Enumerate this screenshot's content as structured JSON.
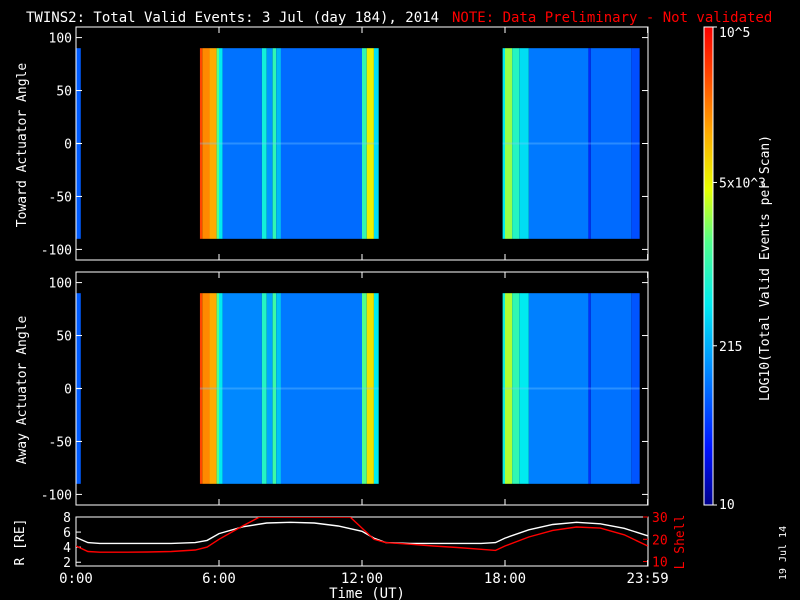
{
  "header": {
    "title": "TWINS2: Total Valid Events:  3 Jul (day 184), 2014",
    "note": "NOTE: Data Preliminary - Not validated"
  },
  "side_date": "19 Jul 14",
  "colors": {
    "note": "#ff0000",
    "lshell": "#ff0000",
    "r_line": "#ffffff",
    "bg": "#000000",
    "axes": "#ffffff"
  },
  "chart_data": [
    {
      "type": "heatmap",
      "panel": "toward",
      "ylabel": "Toward Actuator Angle",
      "ylim": [
        -110,
        110
      ],
      "yticks": [
        100,
        50,
        0,
        -50,
        -100
      ],
      "ytick_labels": [
        "100",
        "50",
        "0",
        "-50",
        "-100"
      ],
      "xlim_hours": [
        0,
        24
      ],
      "data_y_range": [
        -90,
        90
      ],
      "data_segments_hours": [
        [
          0,
          0.2
        ],
        [
          5.2,
          12.7
        ],
        [
          17.9,
          23.65
        ]
      ],
      "column_levels": [
        [
          0.0,
          0.2,
          0.22
        ],
        [
          5.2,
          5.3,
          0.9
        ],
        [
          5.3,
          5.6,
          0.82
        ],
        [
          5.6,
          5.9,
          0.78
        ],
        [
          5.9,
          6.0,
          0.55
        ],
        [
          6.0,
          6.15,
          0.42
        ],
        [
          6.15,
          7.8,
          0.25
        ],
        [
          7.8,
          8.0,
          0.45
        ],
        [
          8.0,
          8.25,
          0.3
        ],
        [
          8.25,
          8.4,
          0.5
        ],
        [
          8.4,
          8.6,
          0.35
        ],
        [
          8.6,
          12.0,
          0.24
        ],
        [
          12.0,
          12.2,
          0.5
        ],
        [
          12.2,
          12.5,
          0.68
        ],
        [
          12.5,
          12.7,
          0.4
        ],
        [
          17.9,
          18.0,
          0.42
        ],
        [
          18.0,
          18.3,
          0.6
        ],
        [
          18.3,
          18.6,
          0.48
        ],
        [
          18.6,
          19.0,
          0.4
        ],
        [
          19.0,
          21.5,
          0.26
        ],
        [
          21.5,
          21.6,
          0.15
        ],
        [
          21.6,
          23.3,
          0.24
        ],
        [
          23.3,
          23.65,
          0.2
        ]
      ],
      "colorbar": {
        "label": "LOG10(Total Valid Events per Scan)",
        "ticks": [
          "10",
          "215",
          "5x10^3",
          "10^5"
        ],
        "tick_values": [
          10,
          215,
          5000,
          100000
        ]
      }
    },
    {
      "type": "heatmap",
      "panel": "away",
      "ylabel": "Away Actuator Angle",
      "ylim": [
        -110,
        110
      ],
      "yticks": [
        100,
        50,
        0,
        -50,
        -100
      ],
      "ytick_labels": [
        "100",
        "50",
        "0",
        "-50",
        "-100"
      ],
      "xlim_hours": [
        0,
        24
      ],
      "data_y_range": [
        -90,
        90
      ],
      "data_segments_hours": [
        [
          0,
          0.2
        ],
        [
          5.2,
          12.7
        ],
        [
          17.9,
          23.65
        ]
      ],
      "column_levels": [
        [
          0.0,
          0.2,
          0.22
        ],
        [
          5.2,
          5.3,
          0.9
        ],
        [
          5.3,
          5.6,
          0.82
        ],
        [
          5.6,
          5.9,
          0.78
        ],
        [
          5.9,
          6.0,
          0.55
        ],
        [
          6.0,
          6.15,
          0.42
        ],
        [
          6.15,
          7.8,
          0.28
        ],
        [
          7.8,
          8.0,
          0.48
        ],
        [
          8.0,
          8.25,
          0.32
        ],
        [
          8.25,
          8.4,
          0.52
        ],
        [
          8.4,
          8.6,
          0.36
        ],
        [
          8.6,
          12.0,
          0.26
        ],
        [
          12.0,
          12.2,
          0.55
        ],
        [
          12.2,
          12.5,
          0.7
        ],
        [
          12.5,
          12.7,
          0.42
        ],
        [
          17.9,
          18.0,
          0.45
        ],
        [
          18.0,
          18.3,
          0.62
        ],
        [
          18.3,
          18.6,
          0.5
        ],
        [
          18.6,
          19.0,
          0.42
        ],
        [
          19.0,
          21.5,
          0.27
        ],
        [
          21.5,
          21.6,
          0.16
        ],
        [
          21.6,
          23.3,
          0.25
        ],
        [
          23.3,
          23.65,
          0.21
        ]
      ]
    },
    {
      "type": "line",
      "panel": "orbit",
      "ylabel_left": "R [RE]",
      "ylabel_right": "L Shell",
      "xlabel": "Time (UT)",
      "xlim_hours": [
        0,
        24
      ],
      "xticks_hours": [
        0,
        6,
        12,
        18,
        23.983
      ],
      "xtick_labels": [
        "0:00",
        "6:00",
        "12:00",
        "18:00",
        "23:59"
      ],
      "ylim_left": [
        1.5,
        8
      ],
      "yticks_left": [
        2,
        4,
        6,
        8
      ],
      "ylim_right": [
        8,
        30
      ],
      "yticks_right": [
        10,
        20,
        30
      ],
      "series": [
        {
          "name": "R [RE]",
          "axis": "left",
          "x": [
            0,
            0.5,
            1,
            2,
            3,
            4,
            5,
            5.5,
            6,
            7,
            8,
            9,
            10,
            11,
            12,
            12.5,
            13,
            14,
            15,
            16,
            17,
            17.6,
            18,
            19,
            20,
            21,
            22,
            23,
            23.99
          ],
          "y": [
            5.3,
            4.6,
            4.5,
            4.5,
            4.5,
            4.5,
            4.6,
            4.9,
            5.8,
            6.7,
            7.2,
            7.3,
            7.2,
            6.8,
            6.1,
            5.2,
            4.6,
            4.5,
            4.5,
            4.5,
            4.5,
            4.6,
            5.2,
            6.3,
            7.0,
            7.3,
            7.1,
            6.5,
            5.5
          ]
        },
        {
          "name": "L Shell",
          "axis": "right",
          "x": [
            0,
            0.5,
            1,
            2,
            3,
            4,
            5,
            5.5,
            6,
            7,
            7.7,
            11.5,
            12,
            12.5,
            13,
            14,
            15,
            16,
            17,
            17.6,
            18,
            19,
            20,
            21,
            22,
            23,
            23.99
          ],
          "y": [
            17,
            14.5,
            14.2,
            14.2,
            14.3,
            14.5,
            15.2,
            16.5,
            20,
            26,
            30,
            30,
            25,
            20,
            18.5,
            17.8,
            17,
            16.3,
            15.5,
            15,
            17,
            21,
            24,
            25.5,
            25,
            22,
            17
          ]
        }
      ]
    }
  ]
}
